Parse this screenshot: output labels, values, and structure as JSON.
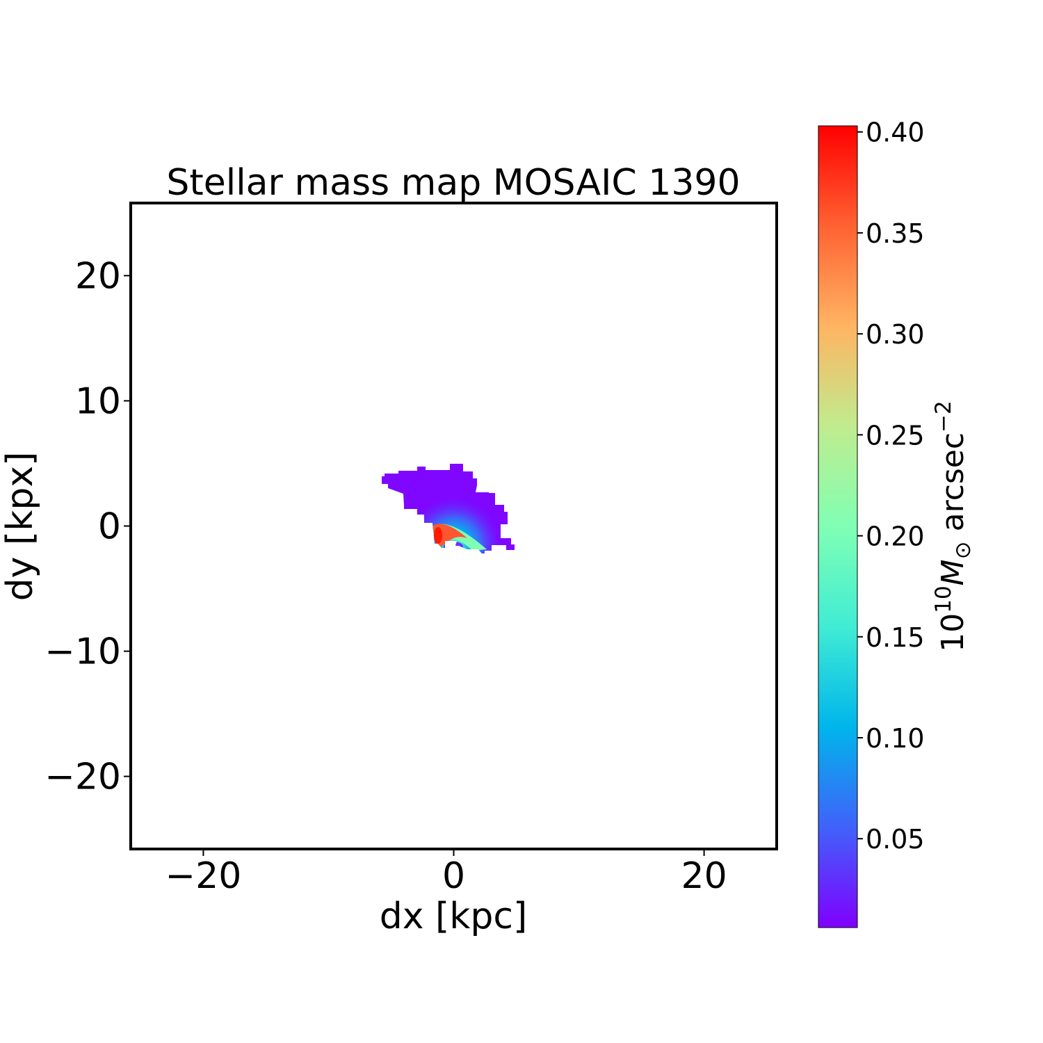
{
  "chart_data": {
    "type": "heatmap",
    "title": "Stellar mass map MOSAIC 1390",
    "xlabel": "dx [kpc]",
    "ylabel": "dy [kpx]",
    "xlim": [
      -25.8,
      25.8
    ],
    "ylim": [
      -25.8,
      25.8
    ],
    "xticks": [
      -20,
      0,
      20
    ],
    "yticks": [
      -20,
      -10,
      0,
      10,
      20
    ],
    "xtick_labels": [
      "−20",
      "0",
      "20"
    ],
    "ytick_labels": [
      "−20",
      "−10",
      "0",
      "10",
      "20"
    ],
    "colormap": "rainbow",
    "colorbar": {
      "label_base": "10",
      "label_exp": "10",
      "label_symbol": "M",
      "label_sub": "⊙",
      "label_unit": " arcsec",
      "label_unit_exp": "−2",
      "range": [
        0.006,
        0.403
      ],
      "ticks": [
        0.05,
        0.1,
        0.15,
        0.2,
        0.25,
        0.3,
        0.35,
        0.4
      ],
      "tick_labels": [
        "0.05",
        "0.10",
        "0.15",
        "0.20",
        "0.25",
        "0.30",
        "0.35",
        "0.40"
      ]
    },
    "grid": false,
    "source_peak": {
      "dx": -0.5,
      "dy": -1.2,
      "value": 0.4
    },
    "source_extent_kpc": {
      "dx": [
        -5.6,
        4.9
      ],
      "dy": [
        -2.1,
        5.0
      ]
    }
  }
}
